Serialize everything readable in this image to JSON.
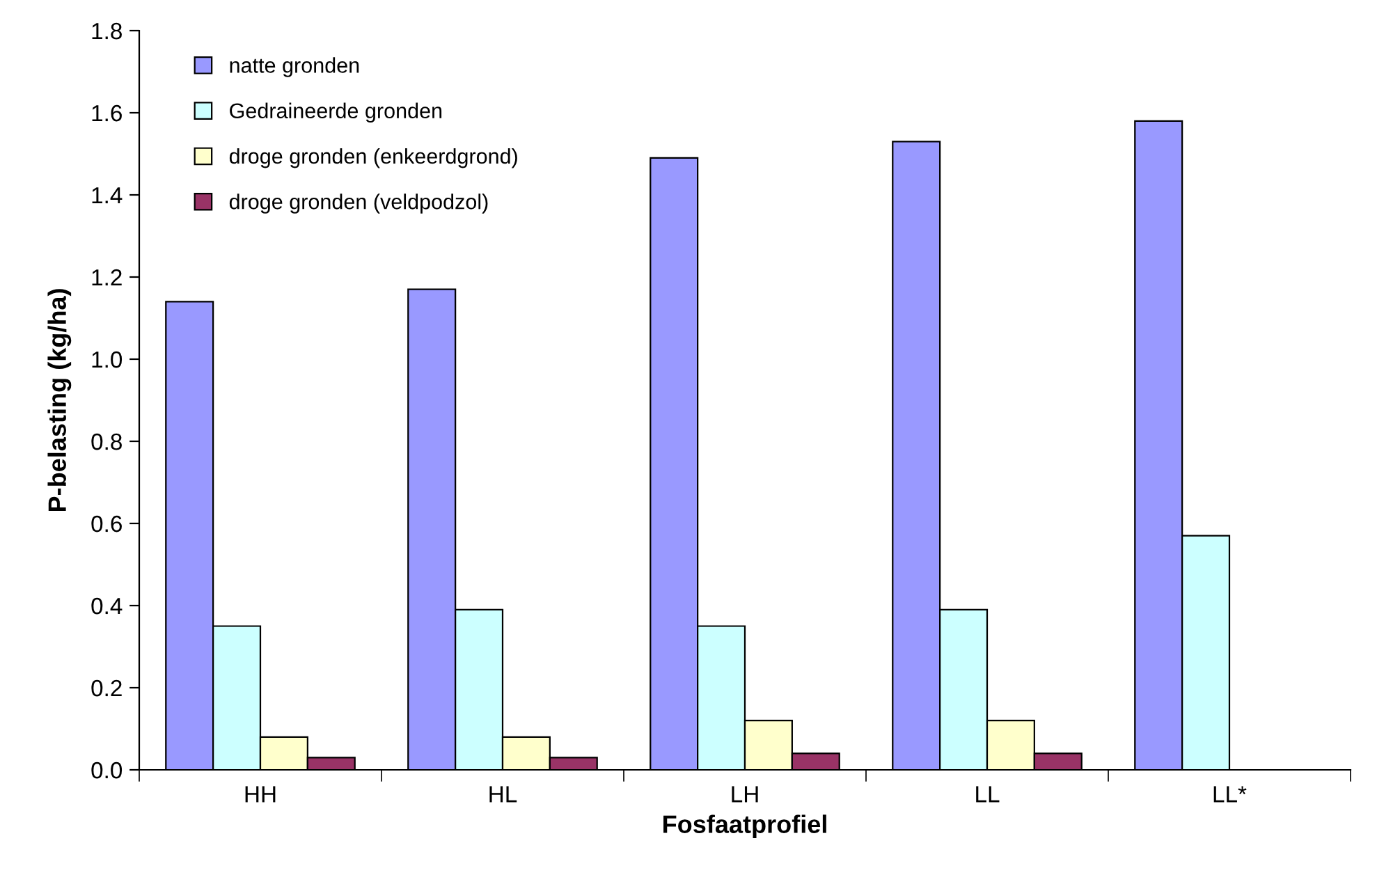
{
  "chart_data": {
    "type": "bar",
    "xlabel": "Fosfaatprofiel",
    "ylabel": "P-belasting (kg/ha)",
    "categories": [
      "HH",
      "HL",
      "LH",
      "LL",
      "LL*"
    ],
    "series": [
      {
        "name": "natte gronden",
        "color": "#9999ff",
        "values": [
          1.14,
          1.17,
          1.49,
          1.53,
          1.58
        ]
      },
      {
        "name": "Gedraineerde gronden",
        "color": "#ccffff",
        "values": [
          0.35,
          0.39,
          0.35,
          0.39,
          0.57
        ]
      },
      {
        "name": "droge gronden (enkeerdgrond)",
        "color": "#ffffcc",
        "values": [
          0.08,
          0.08,
          0.12,
          0.12,
          null
        ]
      },
      {
        "name": "droge gronden (veldpodzol)",
        "color": "#993366",
        "values": [
          0.03,
          0.03,
          0.04,
          0.04,
          null
        ]
      }
    ],
    "ylim": [
      0,
      1.8
    ],
    "yticks": [
      {
        "value": 0,
        "label": "0.0"
      },
      {
        "value": 0.2,
        "label": "0.2"
      },
      {
        "value": 0.4,
        "label": "0.4"
      },
      {
        "value": 0.6,
        "label": "0.6"
      },
      {
        "value": 0.8,
        "label": "0.8"
      },
      {
        "value": 1.0,
        "label": "1.0"
      },
      {
        "value": 1.2,
        "label": "1.2"
      },
      {
        "value": 1.4,
        "label": "1.4"
      },
      {
        "value": 1.6,
        "label": "1.6"
      },
      {
        "value": 1.8,
        "label": "1.8"
      }
    ],
    "grid": false,
    "legend": "top left"
  }
}
